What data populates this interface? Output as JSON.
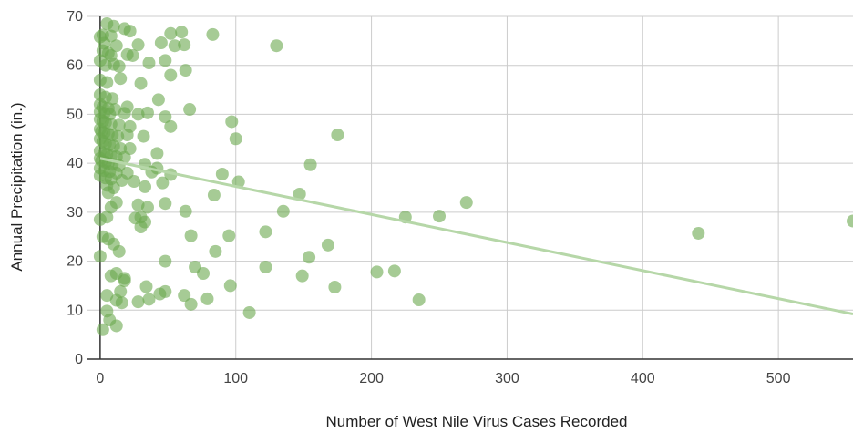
{
  "chart_data": {
    "type": "scatter",
    "title": "",
    "xlabel": "Number of West Nile Virus Cases Recorded",
    "ylabel": "Annual Precipitation (in.)",
    "xlim": [
      -10,
      555
    ],
    "ylim": [
      0,
      70
    ],
    "x_ticks": [
      "0",
      "100",
      "200",
      "300",
      "400",
      "500"
    ],
    "y_ticks": [
      "0",
      "10",
      "20",
      "30",
      "40",
      "50",
      "60",
      "70"
    ],
    "grid": true,
    "legend": "none",
    "point_color": "#6aa84f",
    "trendline": {
      "type": "linear",
      "x": [
        0,
        555
      ],
      "y": [
        41,
        9.2
      ],
      "color": "#b6d7a8"
    },
    "points": [
      [
        5,
        68.5
      ],
      [
        10,
        68
      ],
      [
        18,
        67.5
      ],
      [
        22,
        67
      ],
      [
        2,
        66.2
      ],
      [
        0,
        65.8
      ],
      [
        8,
        66
      ],
      [
        52,
        66.5
      ],
      [
        60,
        66.8
      ],
      [
        83,
        66.3
      ],
      [
        3,
        64.5
      ],
      [
        12,
        64
      ],
      [
        28,
        64.2
      ],
      [
        45,
        64.6
      ],
      [
        55,
        64
      ],
      [
        62,
        64.2
      ],
      [
        130,
        64
      ],
      [
        2,
        63
      ],
      [
        6,
        62.5
      ],
      [
        8,
        62
      ],
      [
        20,
        62.2
      ],
      [
        24,
        62
      ],
      [
        36,
        60.5
      ],
      [
        48,
        61
      ],
      [
        0,
        61
      ],
      [
        4,
        60
      ],
      [
        10,
        60.2
      ],
      [
        14,
        59.8
      ],
      [
        63,
        59
      ],
      [
        52,
        58
      ],
      [
        0,
        57
      ],
      [
        5,
        56.5
      ],
      [
        15,
        57.3
      ],
      [
        30,
        56.3
      ],
      [
        0,
        54
      ],
      [
        4,
        53.5
      ],
      [
        9,
        53.2
      ],
      [
        43,
        53
      ],
      [
        0,
        52
      ],
      [
        2,
        51.5
      ],
      [
        6,
        51.2
      ],
      [
        11,
        51
      ],
      [
        20,
        51.5
      ],
      [
        66,
        51
      ],
      [
        0,
        50.5
      ],
      [
        3,
        50.2
      ],
      [
        7,
        50
      ],
      [
        18,
        50.2
      ],
      [
        28,
        50
      ],
      [
        35,
        50.3
      ],
      [
        48,
        49.5
      ],
      [
        97,
        48.5
      ],
      [
        0,
        49
      ],
      [
        2,
        48.6
      ],
      [
        4,
        48.3
      ],
      [
        8,
        48
      ],
      [
        14,
        47.8
      ],
      [
        22,
        47.5
      ],
      [
        52,
        47.5
      ],
      [
        0,
        47
      ],
      [
        1,
        46.5
      ],
      [
        3,
        46.2
      ],
      [
        6,
        46
      ],
      [
        9,
        45.8
      ],
      [
        13,
        45.5
      ],
      [
        20,
        45.8
      ],
      [
        32,
        45.5
      ],
      [
        175,
        45.8
      ],
      [
        100,
        45
      ],
      [
        0,
        45
      ],
      [
        2,
        44.5
      ],
      [
        4,
        44
      ],
      [
        7,
        43.8
      ],
      [
        10,
        43.5
      ],
      [
        15,
        43
      ],
      [
        22,
        43
      ],
      [
        0,
        42.5
      ],
      [
        3,
        42
      ],
      [
        5,
        41.8
      ],
      [
        8,
        41.5
      ],
      [
        12,
        41.3
      ],
      [
        18,
        41.2
      ],
      [
        42,
        42
      ],
      [
        0,
        41
      ],
      [
        1,
        40.5
      ],
      [
        4,
        40.2
      ],
      [
        6,
        40
      ],
      [
        9,
        39.8
      ],
      [
        14,
        39.5
      ],
      [
        33,
        39.8
      ],
      [
        42,
        39
      ],
      [
        155,
        39.7
      ],
      [
        0,
        39
      ],
      [
        3,
        38.5
      ],
      [
        7,
        38.3
      ],
      [
        12,
        38
      ],
      [
        20,
        38
      ],
      [
        38,
        38.2
      ],
      [
        52,
        37.7
      ],
      [
        90,
        37.8
      ],
      [
        0,
        37.5
      ],
      [
        4,
        37
      ],
      [
        8,
        36.8
      ],
      [
        16,
        36.5
      ],
      [
        25,
        36.3
      ],
      [
        46,
        36
      ],
      [
        102,
        36.2
      ],
      [
        5,
        35.5
      ],
      [
        10,
        35
      ],
      [
        33,
        35.2
      ],
      [
        6,
        34
      ],
      [
        84,
        33.5
      ],
      [
        147,
        33.7
      ],
      [
        12,
        32
      ],
      [
        8,
        31
      ],
      [
        28,
        31.5
      ],
      [
        35,
        31
      ],
      [
        48,
        31.8
      ],
      [
        63,
        30.2
      ],
      [
        135,
        30.2
      ],
      [
        270,
        32
      ],
      [
        5,
        29
      ],
      [
        26,
        28.8
      ],
      [
        30,
        29
      ],
      [
        225,
        29
      ],
      [
        250,
        29.2
      ],
      [
        33,
        28
      ],
      [
        30,
        27
      ],
      [
        0,
        28.5
      ],
      [
        2,
        25
      ],
      [
        122,
        26
      ],
      [
        67,
        25.2
      ],
      [
        95,
        25.2
      ],
      [
        441,
        25.7
      ],
      [
        555,
        28.2
      ],
      [
        6,
        24.5
      ],
      [
        10,
        23.5
      ],
      [
        168,
        23.3
      ],
      [
        14,
        22
      ],
      [
        85,
        22
      ],
      [
        0,
        21
      ],
      [
        154,
        20.8
      ],
      [
        48,
        20
      ],
      [
        18,
        16.5
      ],
      [
        70,
        18.8
      ],
      [
        122,
        18.8
      ],
      [
        204,
        17.8
      ],
      [
        217,
        18
      ],
      [
        8,
        17
      ],
      [
        12,
        17.5
      ],
      [
        76,
        17.5
      ],
      [
        149,
        17
      ],
      [
        18,
        16
      ],
      [
        96,
        15
      ],
      [
        173,
        14.7
      ],
      [
        15,
        13.8
      ],
      [
        34,
        14.8
      ],
      [
        48,
        13.8
      ],
      [
        5,
        13
      ],
      [
        62,
        13
      ],
      [
        44,
        13.3
      ],
      [
        12,
        12
      ],
      [
        28,
        11.7
      ],
      [
        36,
        12.2
      ],
      [
        67,
        11.2
      ],
      [
        79,
        12.3
      ],
      [
        235,
        12.1
      ],
      [
        16,
        11.5
      ],
      [
        5,
        9.8
      ],
      [
        110,
        9.5
      ],
      [
        7,
        8
      ],
      [
        12,
        6.8
      ],
      [
        2,
        6
      ]
    ]
  }
}
